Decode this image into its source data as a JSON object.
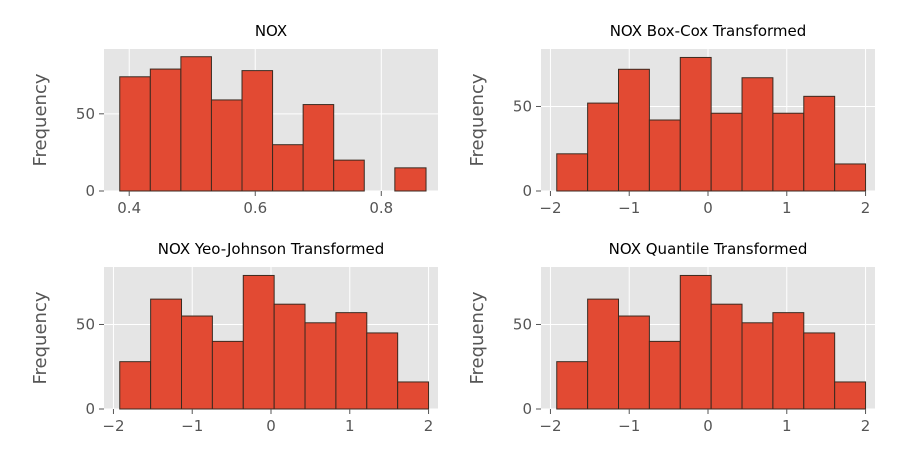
{
  "chart_data": [
    {
      "type": "bar",
      "title": "NOX",
      "xlabel": "",
      "ylabel": "Frequency",
      "xlim": [
        0.36,
        0.89
      ],
      "ylim": [
        0,
        92
      ],
      "grid": true,
      "xticks": [
        0.4,
        0.6,
        0.8
      ],
      "xtick_labels": [
        "0.4",
        "0.6",
        "0.8"
      ],
      "yticks": [
        0,
        50
      ],
      "ytick_labels": [
        "0",
        "50"
      ],
      "bin_edges": [
        0.385,
        0.4335,
        0.482,
        0.5305,
        0.579,
        0.6275,
        0.676,
        0.7245,
        0.773,
        0.8215,
        0.871
      ],
      "values": [
        74,
        79,
        87,
        59,
        78,
        30,
        56,
        20,
        0,
        15
      ],
      "color": "#E24A33",
      "edgecolor": "#3B2A20"
    },
    {
      "type": "bar",
      "title": "NOX Box-Cox Transformed",
      "xlabel": "",
      "ylabel": "Frequency",
      "xlim": [
        -2.12,
        2.12
      ],
      "ylim": [
        0,
        84
      ],
      "grid": true,
      "xticks": [
        -2,
        -1,
        0,
        1,
        2
      ],
      "xtick_labels": [
        "−2",
        "−1",
        "0",
        "1",
        "2"
      ],
      "yticks": [
        0,
        50
      ],
      "ytick_labels": [
        "0",
        "50"
      ],
      "bin_edges": [
        -1.92,
        -1.528,
        -1.136,
        -0.744,
        -0.352,
        0.04,
        0.432,
        0.824,
        1.216,
        1.608,
        2.0
      ],
      "values": [
        22,
        52,
        72,
        42,
        79,
        46,
        67,
        46,
        56,
        16
      ],
      "color": "#E24A33",
      "edgecolor": "#3B2A20"
    },
    {
      "type": "bar",
      "title": "NOX Yeo-Johnson Transformed",
      "xlabel": "",
      "ylabel": "Frequency",
      "xlim": [
        -2.12,
        2.12
      ],
      "ylim": [
        0,
        84
      ],
      "grid": true,
      "xticks": [
        -2,
        -1,
        0,
        1,
        2
      ],
      "xtick_labels": [
        "−2",
        "−1",
        "0",
        "1",
        "2"
      ],
      "yticks": [
        0,
        50
      ],
      "ytick_labels": [
        "0",
        "50"
      ],
      "bin_edges": [
        -1.92,
        -1.528,
        -1.136,
        -0.744,
        -0.352,
        0.04,
        0.432,
        0.824,
        1.216,
        1.608,
        2.0
      ],
      "values": [
        28,
        65,
        55,
        40,
        79,
        62,
        51,
        57,
        45,
        16
      ],
      "color": "#E24A33",
      "edgecolor": "#3B2A20"
    },
    {
      "type": "bar",
      "title": "NOX Quantile Transformed",
      "xlabel": "",
      "ylabel": "Frequency",
      "xlim": [
        -2.12,
        2.12
      ],
      "ylim": [
        0,
        84
      ],
      "grid": true,
      "xticks": [
        -2,
        -1,
        0,
        1,
        2
      ],
      "xtick_labels": [
        "−2",
        "−1",
        "0",
        "1",
        "2"
      ],
      "yticks": [
        0,
        50
      ],
      "ytick_labels": [
        "0",
        "50"
      ],
      "bin_edges": [
        -1.92,
        -1.528,
        -1.136,
        -0.744,
        -0.352,
        0.04,
        0.432,
        0.824,
        1.216,
        1.608,
        2.0
      ],
      "values": [
        28,
        65,
        55,
        40,
        79,
        62,
        51,
        57,
        45,
        16
      ],
      "color": "#E24A33",
      "edgecolor": "#3B2A20"
    }
  ],
  "style": {
    "plot_bg": "#E5E5E5",
    "grid_color": "#FFFFFF",
    "tick_color": "#555555"
  }
}
